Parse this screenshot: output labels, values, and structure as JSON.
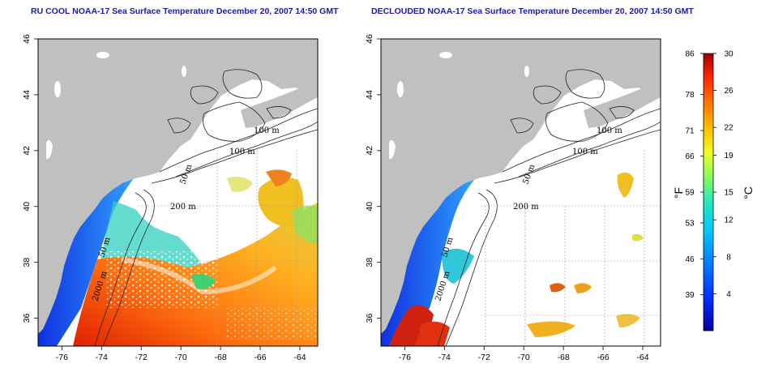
{
  "titles": {
    "left": "RU COOL NOAA-17 Sea Surface Temperature December 20, 2007 14:50 GMT",
    "right": "DECLOUDED NOAA-17 Sea Surface Temperature December 20, 2007 14:50 GMT"
  },
  "axes": {
    "lon_ticks": [
      -76,
      -74,
      -72,
      -70,
      -68,
      -66,
      -64
    ],
    "lat_ticks": [
      36,
      38,
      40,
      42,
      44,
      46
    ],
    "lon_range": [
      -77.2,
      -63.1
    ],
    "lat_range": [
      35.0,
      46.0
    ]
  },
  "contour_labels": [
    "100 m",
    "100 m",
    "50 m",
    "200 m",
    "50 m",
    "2000 m"
  ],
  "colorbar": {
    "fahrenheit_ticks": [
      "86",
      "78",
      "71",
      "66",
      "59",
      "53",
      "46",
      "39"
    ],
    "celsius_ticks": [
      "30",
      "26",
      "22",
      "19",
      "15",
      "12",
      "8",
      "4"
    ],
    "fahrenheit_unit": "°F",
    "celsius_unit": "°C",
    "range_c": [
      0,
      30
    ]
  },
  "colors": {
    "land": "#c0c0c0",
    "title": "#1a1aa8",
    "grid": "#9a9a9a"
  }
}
